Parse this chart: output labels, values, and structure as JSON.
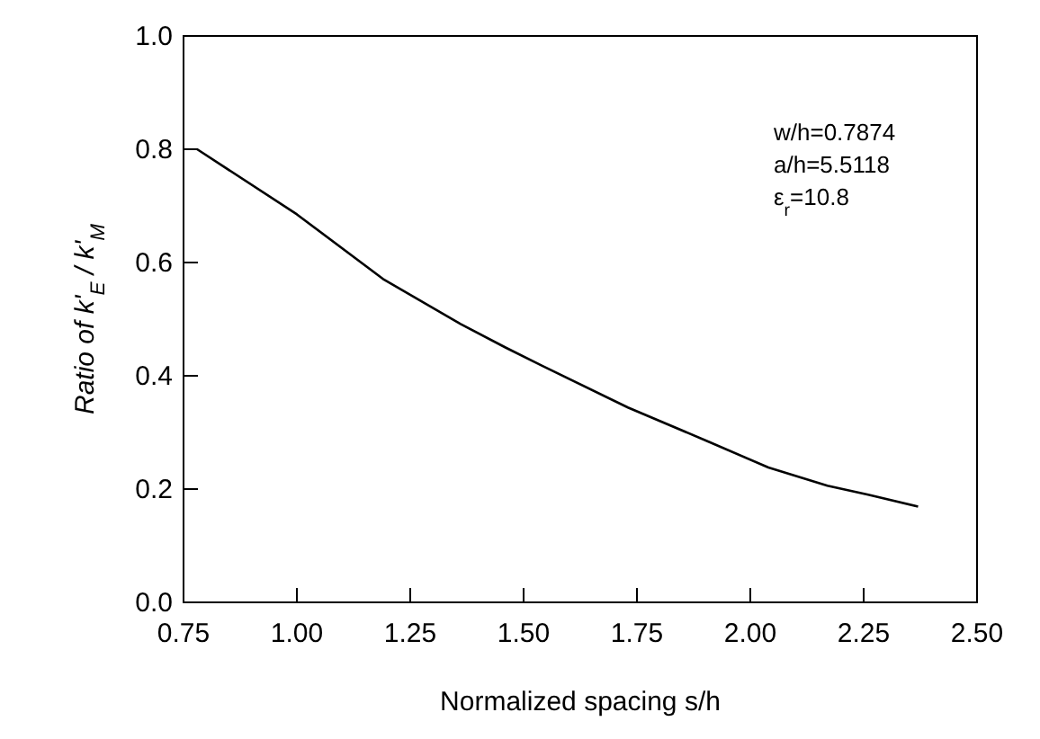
{
  "chart_data": {
    "type": "line",
    "xlabel": "Normalized spacing s/h",
    "ylabel": "Ratio of k'$_{E}$ / k'$_{M}$",
    "x": [
      0.78,
      1.0,
      1.19,
      1.36,
      1.46,
      1.54,
      1.73,
      1.91,
      2.04,
      2.17,
      2.26,
      2.37
    ],
    "series": [
      {
        "color": "#000000",
        "values": [
          0.8,
          0.685,
          0.571,
          0.492,
          0.45,
          0.418,
          0.344,
          0.283,
          0.238,
          0.206,
          0.19,
          0.169
        ]
      }
    ],
    "xlim": [
      0.75,
      2.5
    ],
    "xticks": [
      {
        "value": 0.75,
        "label": "0.75"
      },
      {
        "value": 1.0,
        "label": "1.00"
      },
      {
        "value": 1.25,
        "label": "1.25"
      },
      {
        "value": 1.5,
        "label": "1.50"
      },
      {
        "value": 1.75,
        "label": "1.75"
      },
      {
        "value": 2.0,
        "label": "2.00"
      },
      {
        "value": 2.25,
        "label": "2.25"
      },
      {
        "value": 2.5,
        "label": "2.50"
      }
    ],
    "ylim": [
      0,
      1
    ],
    "yticks": [
      {
        "value": 0,
        "label": "0.0"
      },
      {
        "value": 0.2,
        "label": "0.2"
      },
      {
        "value": 0.4,
        "label": "0.4"
      },
      {
        "value": 0.6,
        "label": "0.6"
      },
      {
        "value": 0.8,
        "label": "0.8"
      },
      {
        "value": 1,
        "label": "1.0"
      }
    ],
    "annotations": [
      "w/h=0.7874",
      "a/h=5.5118",
      "ε$_{r}$=10.8"
    ],
    "grid": false,
    "marker": "none",
    "line_style": "solid"
  }
}
